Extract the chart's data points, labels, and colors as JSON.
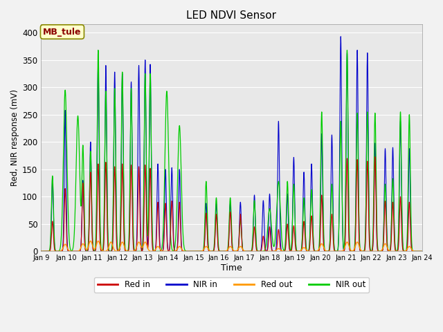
{
  "title": "LED NDVI Sensor",
  "xlabel": "Time",
  "ylabel": "Red, NIR response (mV)",
  "annotation": "MB_tule",
  "ylim": [
    0,
    415
  ],
  "xlim_days": [
    9,
    24
  ],
  "bg_color": "#e8e8e8",
  "fig_bg": "#f2f2f2",
  "series_colors": {
    "red_in": "#cc0000",
    "nir_in": "#0000cc",
    "red_out": "#ff9900",
    "nir_out": "#00cc00"
  },
  "legend_labels": [
    "Red in",
    "NIR in",
    "Red out",
    "NIR out"
  ],
  "xtick_labels": [
    "Jan 9",
    "Jan 10",
    "Jan 11",
    "Jan 12",
    "Jan 13",
    "Jan 14",
    "Jan 15",
    "Jan 16",
    "Jan 17",
    "Jan 18",
    "Jan 19",
    "Jan 20",
    "Jan 21",
    "Jan 22",
    "Jan 23",
    "Jan 24"
  ],
  "ytick_labels": [
    0,
    50,
    100,
    150,
    200,
    250,
    300,
    350,
    400
  ]
}
